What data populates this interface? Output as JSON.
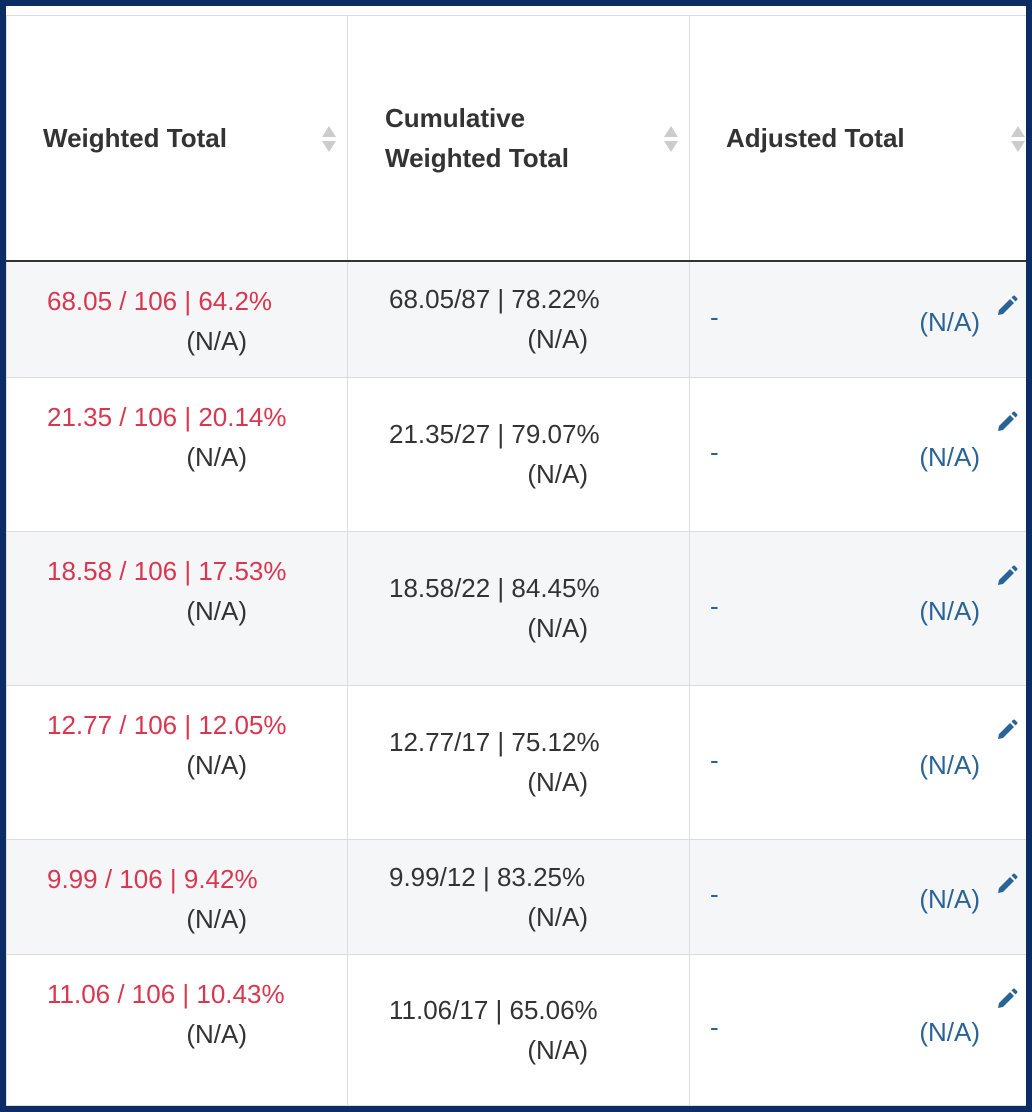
{
  "table": {
    "headers": [
      "Weighted Total",
      "Cumulative Weighted Total",
      "Adjusted Total"
    ],
    "rows": [
      {
        "weighted": "68.05 / 106 | 64.2%",
        "weighted_note": "(N/A)",
        "cumulative": "68.05/87 | 78.22%",
        "cumulative_note": "(N/A)",
        "adjusted": "-",
        "adjusted_note": "(N/A)"
      },
      {
        "weighted": "21.35 / 106 | 20.14%",
        "weighted_note": "(N/A)",
        "cumulative": "21.35/27 | 79.07%",
        "cumulative_note": "(N/A)",
        "adjusted": "-",
        "adjusted_note": "(N/A)"
      },
      {
        "weighted": "18.58 / 106 | 17.53%",
        "weighted_note": "(N/A)",
        "cumulative": "18.58/22 | 84.45%",
        "cumulative_note": "(N/A)",
        "adjusted": "-",
        "adjusted_note": "(N/A)"
      },
      {
        "weighted": "12.77 / 106 | 12.05%",
        "weighted_note": "(N/A)",
        "cumulative": "12.77/17 | 75.12%",
        "cumulative_note": "(N/A)",
        "adjusted": "-",
        "adjusted_note": "(N/A)"
      },
      {
        "weighted": "9.99 / 106 | 9.42%",
        "weighted_note": "(N/A)",
        "cumulative": "9.99/12 | 83.25%",
        "cumulative_note": "(N/A)",
        "adjusted": "-",
        "adjusted_note": "(N/A)"
      },
      {
        "weighted": "11.06 / 106 | 10.43%",
        "weighted_note": "(N/A)",
        "cumulative": "11.06/17 | 65.06%",
        "cumulative_note": "(N/A)",
        "adjusted": "-",
        "adjusted_note": "(N/A)"
      }
    ]
  }
}
